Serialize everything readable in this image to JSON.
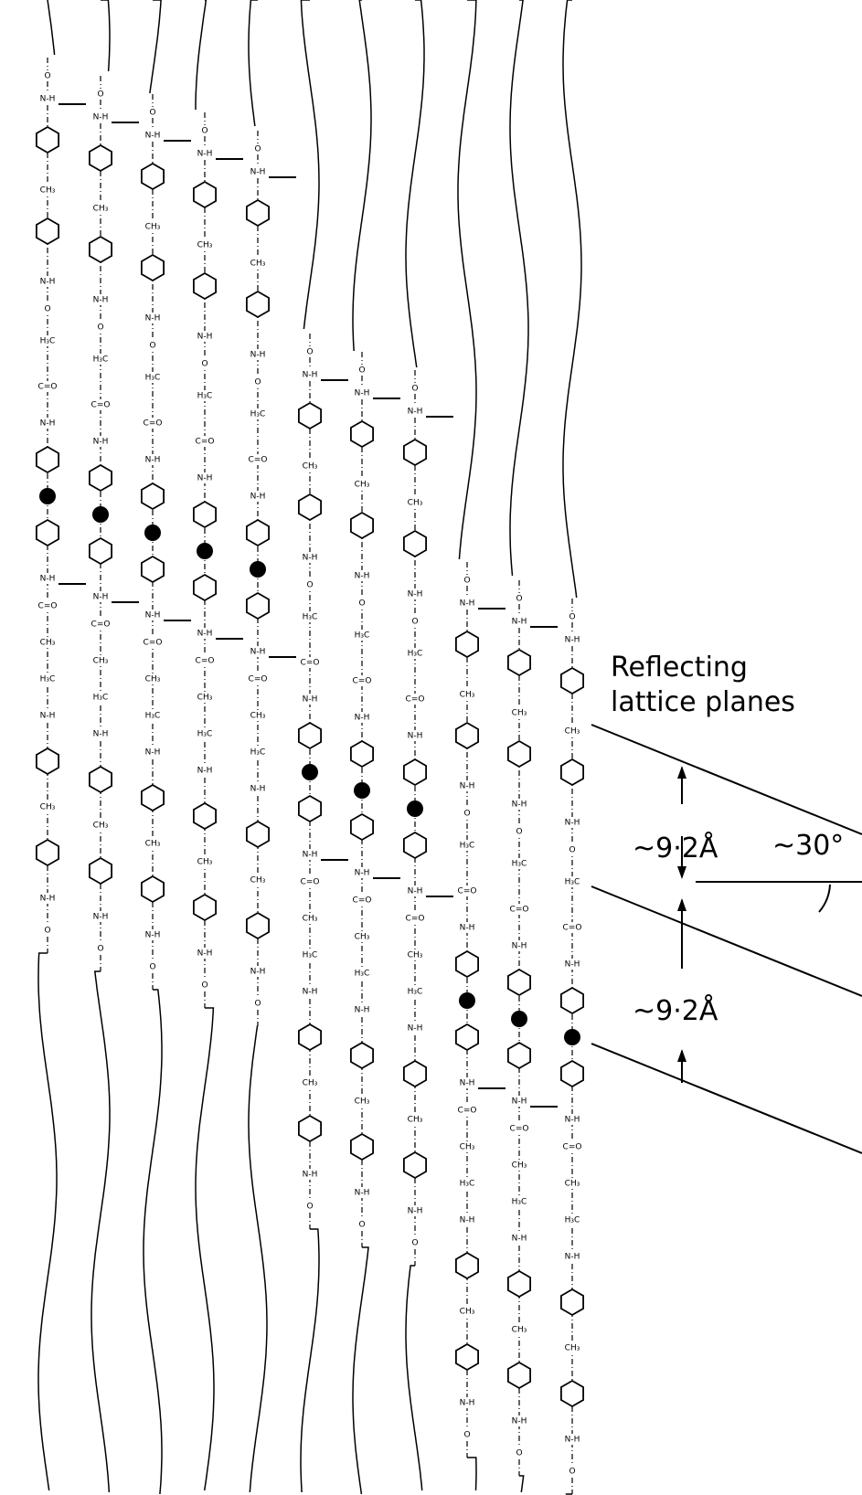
{
  "labels": {
    "line1": "Reflecting",
    "line2": "lattice planes",
    "spacing_top": "~9·2Å",
    "spacing_bottom": "~9·2Å",
    "angle": "~30°"
  },
  "group_labels": [
    "N-H",
    "C=O",
    "CH₃",
    "H₃C",
    "O"
  ]
}
